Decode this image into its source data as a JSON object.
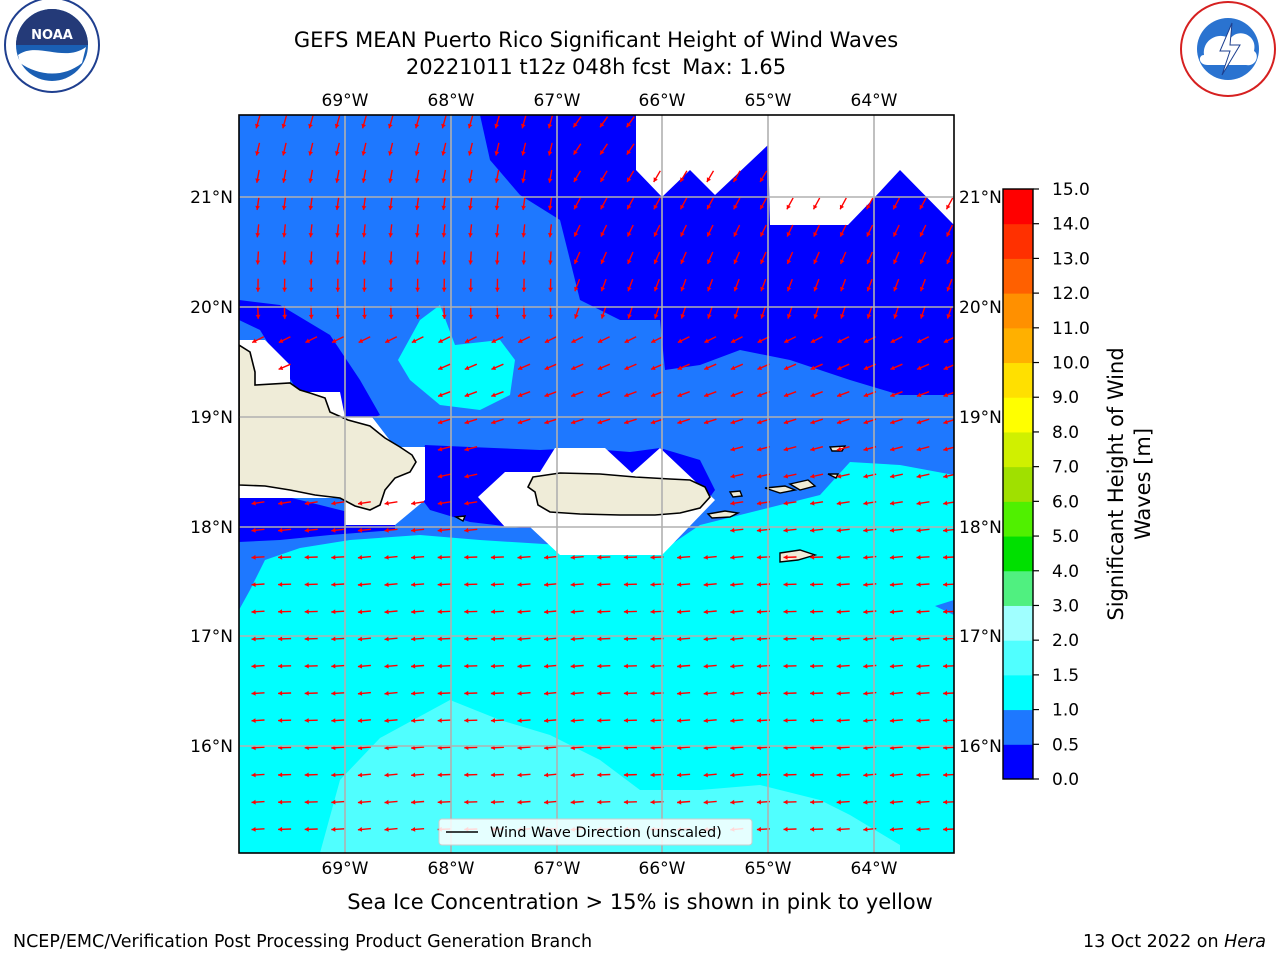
{
  "title": {
    "line1": "GEFS MEAN Puerto Rico Significant Height of Wind Waves",
    "line2_run": "20221011 t12z 048h fcst",
    "line2_max": "Max: 1.65"
  },
  "map": {
    "lon_ticks": [
      "69°W",
      "68°W",
      "67°W",
      "66°W",
      "65°W",
      "64°W"
    ],
    "lat_ticks": [
      "21°N",
      "20°N",
      "19°N",
      "18°N",
      "17°N",
      "16°N"
    ],
    "lon_range": [
      -69.98,
      -63.42
    ],
    "lat_range": [
      15.05,
      21.75
    ],
    "legend_label": "Wind Wave Direction (unscaled)",
    "arrow_color": "#ff0000",
    "land_color": "#efecd8"
  },
  "colorbar": {
    "label": "Significant Height of Wind Waves [m]",
    "label_line1": "Significant Height of Wind",
    "label_line2": "Waves [m]",
    "levels": [
      "0.0",
      "0.5",
      "1.0",
      "1.5",
      "2.0",
      "3.0",
      "4.0",
      "5.0",
      "6.0",
      "7.0",
      "8.0",
      "9.0",
      "10.0",
      "11.0",
      "12.0",
      "13.0",
      "14.0",
      "15.0"
    ],
    "colors": [
      "#0000ff",
      "#1e78ff",
      "#00ffff",
      "#50ffff",
      "#a0ffff",
      "#50f080",
      "#00e000",
      "#50f000",
      "#a0e000",
      "#d0f000",
      "#ffff00",
      "#ffe000",
      "#ffb000",
      "#ff9000",
      "#ff6000",
      "#ff3000",
      "#ff0000"
    ]
  },
  "caption": "Sea Ice Concentration > 15% is shown in pink to yellow",
  "footer": {
    "left": "NCEP/EMC/Verification Post Processing Product Generation Branch",
    "right_date": "13 Oct 2022 on ",
    "right_host": "Hera"
  }
}
